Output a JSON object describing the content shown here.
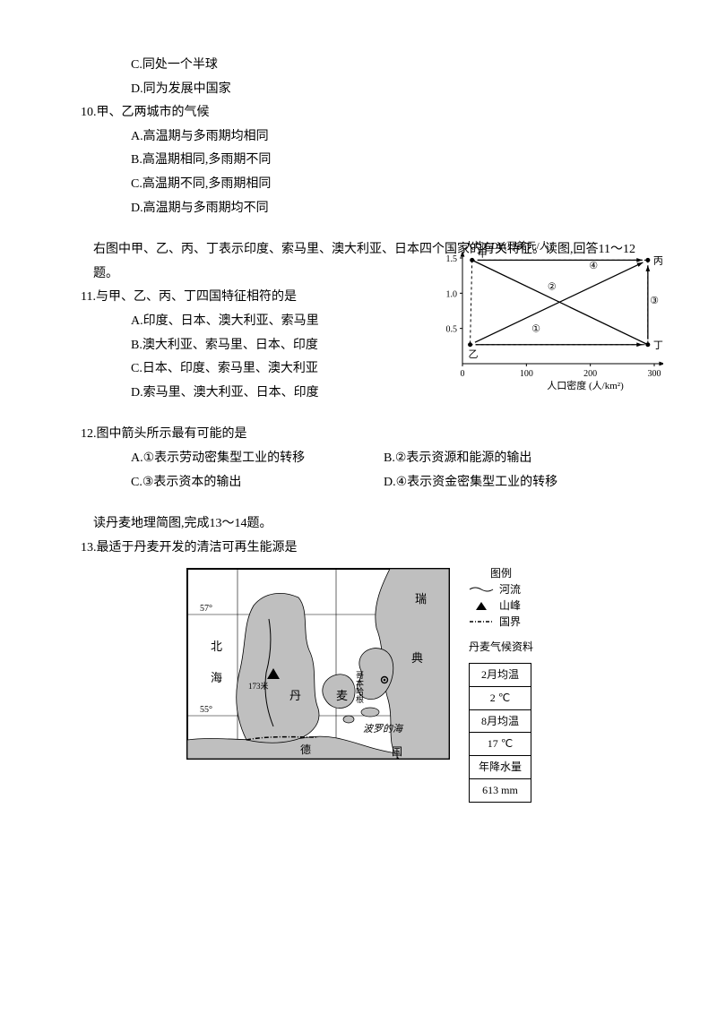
{
  "q9_trail": {
    "c": "C.同处一个半球",
    "d": "D.同为发展中国家"
  },
  "q10": {
    "stem": "10.甲、乙两城市的气候",
    "a": "A.高温期与多雨期均相同",
    "b": "B.高温期相同,多雨期不同",
    "c": "C.高温期不同,多雨期相同",
    "d": "D.高温期与多雨期均不同"
  },
  "intro11": "右图中甲、乙、丙、丁表示印度、索马里、澳大利亚、日本四个国家的有关特征。读图,回答11～12题。",
  "q11": {
    "stem": "11.与甲、乙、丙、丁四国特征相符的是",
    "a": "A.印度、日本、澳大利亚、索马里",
    "b": "B.澳大利亚、索马里、日本、印度",
    "c": "C.日本、印度、索马里、澳大利亚",
    "d": "D.索马里、澳大利亚、日本、印度"
  },
  "q12": {
    "stem": "12.图中箭头所示最有可能的是",
    "a": "A.①表示劳动密集型工业的转移",
    "b": "B.②表示资源和能源的输出",
    "c": "C.③表示资本的输出",
    "d": "D.④表示资金密集型工业的转移"
  },
  "intro13": "读丹麦地理简图,完成13～14题。",
  "q13": {
    "stem": "13.最适于丹麦开发的清洁可再生能源是"
  },
  "scatter": {
    "type": "scatter",
    "y_title": "人均GDP(万美元/人)",
    "x_title": "人口密度 (人/km²)",
    "xlim": [
      0,
      300
    ],
    "ylim": [
      0,
      1.5
    ],
    "x_ticks": [
      0,
      100,
      200,
      300
    ],
    "y_ticks": [
      0.5,
      1.0,
      1.5
    ],
    "points": {
      "甲": {
        "x": 15,
        "y": 1.47,
        "label_dx": 6,
        "label_dy": -4
      },
      "乙": {
        "x": 12,
        "y": 0.27,
        "label_dx": -2,
        "label_dy": 14
      },
      "丙": {
        "x": 290,
        "y": 1.47,
        "label_dx": 6,
        "label_dy": 4
      },
      "丁": {
        "x": 290,
        "y": 0.27,
        "label_dx": 6,
        "label_dy": 4
      }
    },
    "arrows": [
      {
        "from": "乙",
        "to": "丁",
        "label": "①",
        "lx": 115,
        "ly": 0.45
      },
      {
        "from": "乙",
        "to": "丙",
        "label": "②",
        "lx": 140,
        "ly": 1.05
      },
      {
        "from": "丁",
        "to": "丙",
        "label": "③",
        "lx": 300,
        "ly": 0.85
      },
      {
        "from": "甲",
        "to": "丙",
        "label": "④",
        "lx": 205,
        "ly": 1.35
      }
    ],
    "diagonal": {
      "from": "甲",
      "to": "丁"
    },
    "axis_color": "#000000",
    "dash_color": "#000000",
    "bg": "#ffffff"
  },
  "map": {
    "type": "map",
    "labels": {
      "north_sea1": "北",
      "north_sea2": "海",
      "dan": "丹",
      "mai": "麦",
      "rui": "瑞",
      "dian": "典",
      "de": "德",
      "guo": "国",
      "baltic": "波罗的海",
      "copenhagen": "哥本哈根",
      "peak": "173米"
    },
    "lat_lines": [
      55,
      57
    ],
    "lon_lines": [
      7,
      9,
      11
    ],
    "land_fill": "#bfbfbf",
    "water_fill": "#ffffff",
    "border_color": "#000000",
    "river_color": "#000000"
  },
  "legend": {
    "title": "图例",
    "river": "河流",
    "peak": "山峰",
    "border": "国界"
  },
  "climate": {
    "title": "丹麦气候资料",
    "rows": [
      [
        "2月均温"
      ],
      [
        "2 ℃"
      ],
      [
        "8月均温"
      ],
      [
        "17 ℃"
      ],
      [
        "年降水量"
      ],
      [
        "613 mm"
      ]
    ]
  }
}
